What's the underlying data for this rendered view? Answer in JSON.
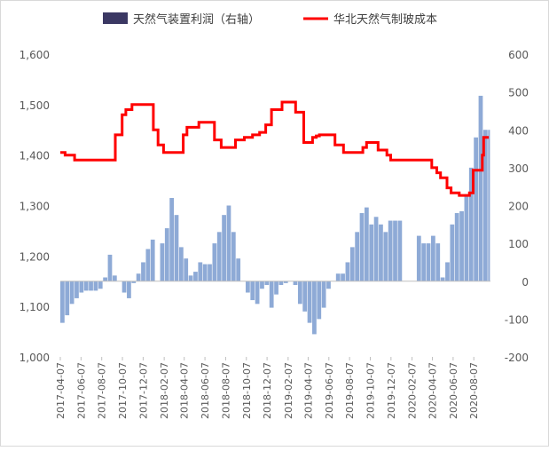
{
  "chart_data": {
    "type": "bar+line",
    "legend": {
      "position": "top",
      "items": [
        {
          "name": "天然气装置利润（右轴）",
          "type": "bar",
          "color": "#8eaad6"
        },
        {
          "name": "华北天然气制玻成本",
          "type": "line",
          "color": "#ff0000"
        }
      ]
    },
    "left_axis": {
      "range": [
        1000,
        1600
      ],
      "ticks": [
        "1,000",
        "1,100",
        "1,200",
        "1,300",
        "1,400",
        "1,500",
        "1,600"
      ]
    },
    "right_axis": {
      "range": [
        -200,
        600
      ],
      "ticks": [
        "-200",
        "-100",
        "0",
        "100",
        "200",
        "300",
        "400",
        "500",
        "600"
      ]
    },
    "x_axis": {
      "start": "2017-04-07",
      "end": "2020-09-25",
      "ticks": [
        "2017-04-07",
        "2017-06-07",
        "2017-08-07",
        "2017-10-07",
        "2017-12-07",
        "2018-02-07",
        "2018-04-07",
        "2018-06-07",
        "2018-08-07",
        "2018-10-07",
        "2018-12-07",
        "2019-02-07",
        "2019-04-07",
        "2019-06-07",
        "2019-08-07",
        "2019-10-07",
        "2019-12-07",
        "2020-02-07",
        "2020-04-07",
        "2020-06-07",
        "2020-08-07"
      ]
    },
    "grid": false,
    "series": [
      {
        "name": "天然气装置利润（右轴）",
        "type": "bar",
        "axis": "right",
        "points": [
          [
            "2017-04-07",
            -110
          ],
          [
            "2017-04-21",
            -90
          ],
          [
            "2017-05-05",
            -60
          ],
          [
            "2017-05-19",
            -45
          ],
          [
            "2017-06-02",
            -30
          ],
          [
            "2017-06-16",
            -25
          ],
          [
            "2017-06-30",
            -25
          ],
          [
            "2017-07-14",
            -25
          ],
          [
            "2017-07-28",
            -20
          ],
          [
            "2017-08-11",
            10
          ],
          [
            "2017-08-25",
            70
          ],
          [
            "2017-09-08",
            15
          ],
          [
            "2017-09-22",
            0
          ],
          [
            "2017-10-06",
            -30
          ],
          [
            "2017-10-20",
            -45
          ],
          [
            "2017-11-03",
            -5
          ],
          [
            "2017-11-17",
            20
          ],
          [
            "2017-12-01",
            50
          ],
          [
            "2017-12-15",
            85
          ],
          [
            "2017-12-29",
            110
          ],
          [
            "2018-01-12",
            0
          ],
          [
            "2018-01-26",
            100
          ],
          [
            "2018-02-09",
            140
          ],
          [
            "2018-02-23",
            220
          ],
          [
            "2018-03-09",
            175
          ],
          [
            "2018-03-23",
            90
          ],
          [
            "2018-04-06",
            60
          ],
          [
            "2018-04-20",
            15
          ],
          [
            "2018-05-04",
            25
          ],
          [
            "2018-05-18",
            50
          ],
          [
            "2018-06-01",
            45
          ],
          [
            "2018-06-15",
            45
          ],
          [
            "2018-06-29",
            100
          ],
          [
            "2018-07-13",
            130
          ],
          [
            "2018-07-27",
            175
          ],
          [
            "2018-08-10",
            200
          ],
          [
            "2018-08-24",
            130
          ],
          [
            "2018-09-07",
            60
          ],
          [
            "2018-09-21",
            0
          ],
          [
            "2018-10-05",
            -30
          ],
          [
            "2018-10-19",
            -50
          ],
          [
            "2018-11-02",
            -60
          ],
          [
            "2018-11-16",
            -20
          ],
          [
            "2018-11-30",
            -10
          ],
          [
            "2018-12-14",
            -70
          ],
          [
            "2018-12-28",
            -35
          ],
          [
            "2019-01-11",
            -10
          ],
          [
            "2019-01-25",
            -5
          ],
          [
            "2019-02-08",
            0
          ],
          [
            "2019-02-22",
            -10
          ],
          [
            "2019-03-08",
            -60
          ],
          [
            "2019-03-22",
            -80
          ],
          [
            "2019-04-05",
            -110
          ],
          [
            "2019-04-19",
            -140
          ],
          [
            "2019-05-03",
            -100
          ],
          [
            "2019-05-17",
            -70
          ],
          [
            "2019-05-31",
            -20
          ],
          [
            "2019-06-14",
            0
          ],
          [
            "2019-06-28",
            20
          ],
          [
            "2019-07-12",
            20
          ],
          [
            "2019-07-26",
            50
          ],
          [
            "2019-08-09",
            90
          ],
          [
            "2019-08-23",
            130
          ],
          [
            "2019-09-06",
            180
          ],
          [
            "2019-09-20",
            195
          ],
          [
            "2019-10-04",
            150
          ],
          [
            "2019-10-18",
            170
          ],
          [
            "2019-11-01",
            150
          ],
          [
            "2019-11-15",
            130
          ],
          [
            "2019-11-29",
            160
          ],
          [
            "2019-12-13",
            160
          ],
          [
            "2019-12-27",
            160
          ],
          [
            "2020-01-10",
            0
          ],
          [
            "2020-01-24",
            0
          ],
          [
            "2020-02-07",
            0
          ],
          [
            "2020-02-21",
            120
          ],
          [
            "2020-03-06",
            100
          ],
          [
            "2020-03-20",
            100
          ],
          [
            "2020-04-03",
            120
          ],
          [
            "2020-04-17",
            100
          ],
          [
            "2020-05-01",
            10
          ],
          [
            "2020-05-15",
            50
          ],
          [
            "2020-05-29",
            150
          ],
          [
            "2020-06-12",
            180
          ],
          [
            "2020-06-26",
            185
          ],
          [
            "2020-07-10",
            230
          ],
          [
            "2020-07-24",
            300
          ],
          [
            "2020-08-07",
            380
          ],
          [
            "2020-08-21",
            490
          ],
          [
            "2020-09-04",
            400
          ],
          [
            "2020-09-18",
            400
          ]
        ]
      },
      {
        "name": "华北天然气制玻成本",
        "type": "line",
        "axis": "left",
        "points": [
          [
            "2017-04-07",
            1405
          ],
          [
            "2017-04-21",
            1400
          ],
          [
            "2017-05-05",
            1400
          ],
          [
            "2017-05-19",
            1390
          ],
          [
            "2017-07-21",
            1390
          ],
          [
            "2017-09-14",
            1390
          ],
          [
            "2017-09-16",
            1440
          ],
          [
            "2017-10-06",
            1480
          ],
          [
            "2017-10-17",
            1490
          ],
          [
            "2017-11-04",
            1500
          ],
          [
            "2017-12-16",
            1500
          ],
          [
            "2018-01-06",
            1450
          ],
          [
            "2018-01-20",
            1420
          ],
          [
            "2018-02-05",
            1405
          ],
          [
            "2018-03-10",
            1405
          ],
          [
            "2018-04-04",
            1440
          ],
          [
            "2018-04-15",
            1455
          ],
          [
            "2018-05-10",
            1455
          ],
          [
            "2018-05-20",
            1465
          ],
          [
            "2018-06-15",
            1465
          ],
          [
            "2018-07-05",
            1430
          ],
          [
            "2018-07-25",
            1415
          ],
          [
            "2018-08-20",
            1415
          ],
          [
            "2018-09-05",
            1430
          ],
          [
            "2018-10-01",
            1435
          ],
          [
            "2018-10-25",
            1440
          ],
          [
            "2018-11-15",
            1445
          ],
          [
            "2018-12-03",
            1460
          ],
          [
            "2018-12-20",
            1490
          ],
          [
            "2019-01-20",
            1505
          ],
          [
            "2019-02-10",
            1505
          ],
          [
            "2019-03-01",
            1485
          ],
          [
            "2019-03-25",
            1425
          ],
          [
            "2019-04-05",
            1425
          ],
          [
            "2019-04-20",
            1435
          ],
          [
            "2019-05-01",
            1438
          ],
          [
            "2019-05-10",
            1440
          ],
          [
            "2019-06-10",
            1440
          ],
          [
            "2019-06-25",
            1420
          ],
          [
            "2019-07-10",
            1420
          ],
          [
            "2019-07-20",
            1405
          ],
          [
            "2019-08-30",
            1405
          ],
          [
            "2019-09-15",
            1415
          ],
          [
            "2019-09-26",
            1425
          ],
          [
            "2019-10-15",
            1425
          ],
          [
            "2019-10-30",
            1410
          ],
          [
            "2019-11-25",
            1400
          ],
          [
            "2019-12-06",
            1390
          ],
          [
            "2020-03-20",
            1390
          ],
          [
            "2020-04-05",
            1375
          ],
          [
            "2020-04-20",
            1365
          ],
          [
            "2020-05-01",
            1355
          ],
          [
            "2020-05-20",
            1335
          ],
          [
            "2020-06-01",
            1325
          ],
          [
            "2020-06-25",
            1320
          ],
          [
            "2020-07-25",
            1325
          ],
          [
            "2020-08-05",
            1370
          ],
          [
            "2020-08-25",
            1370
          ],
          [
            "2020-09-01",
            1400
          ],
          [
            "2020-09-05",
            1435
          ],
          [
            "2020-09-20",
            1435
          ]
        ]
      }
    ]
  }
}
